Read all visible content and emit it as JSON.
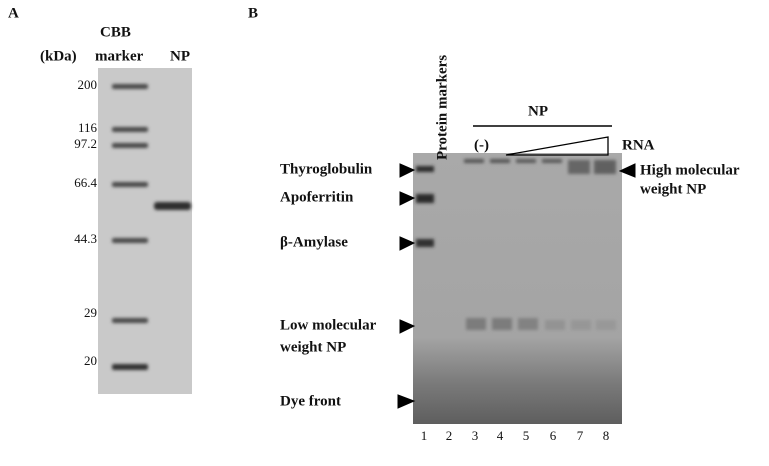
{
  "panel_a": {
    "label": "A",
    "header": [
      "CBB",
      "marker"
    ],
    "unit": "(kDa)",
    "lane_label": "NP",
    "marker_sizes": [
      "200",
      "116",
      "97.2",
      "66.4",
      "44.3",
      "29",
      "20"
    ]
  },
  "panel_b": {
    "label": "B",
    "markers_label": "Protein markers",
    "np_label": "NP",
    "minus_label": "(-)",
    "rna_label": "RNA",
    "left_labels": [
      [
        "Thyroglobulin"
      ],
      [
        "Apoferritin"
      ],
      [
        "β-Amylase"
      ],
      [
        "Low molecular",
        "weight NP"
      ],
      [
        "Dye front"
      ]
    ],
    "right_label": [
      "High molecular",
      "weight NP"
    ],
    "lanes": [
      "1",
      "2",
      "3",
      "4",
      "5",
      "6",
      "7",
      "8"
    ]
  }
}
